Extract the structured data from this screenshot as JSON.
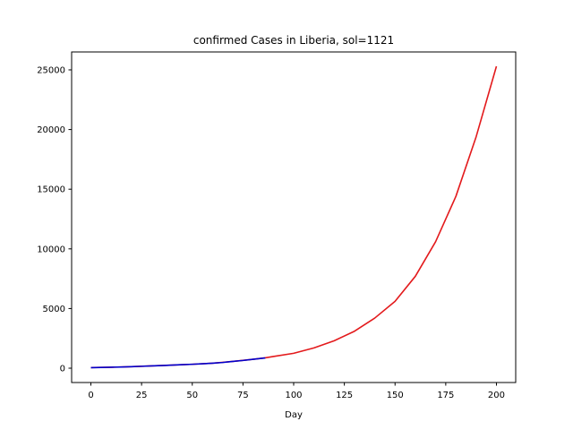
{
  "chart_data": {
    "type": "line",
    "title": "confirmed Cases in Liberia, sol=1121",
    "xlabel": "Day",
    "ylabel": "",
    "xlim": [
      -9.5,
      209.5
    ],
    "ylim": [
      -1200,
      26500
    ],
    "xticks": [
      0,
      25,
      50,
      75,
      100,
      125,
      150,
      175,
      200
    ],
    "yticks": [
      0,
      5000,
      10000,
      15000,
      20000,
      25000
    ],
    "grid": false,
    "legend": "none",
    "series": [
      {
        "color": "#e31a1c",
        "x": [
          0,
          10,
          20,
          30,
          40,
          50,
          60,
          70,
          80,
          86,
          90,
          100,
          110,
          120,
          130,
          140,
          150,
          160,
          170,
          180,
          190,
          200
        ],
        "y": [
          50,
          80,
          130,
          190,
          260,
          330,
          420,
          570,
          750,
          870,
          980,
          1250,
          1700,
          2300,
          3100,
          4200,
          5600,
          7700,
          10600,
          14400,
          19400,
          25300
        ]
      },
      {
        "color": "#0000cc",
        "x": [
          0,
          5,
          10,
          15,
          20,
          25,
          30,
          35,
          40,
          45,
          50,
          55,
          60,
          65,
          70,
          75,
          80,
          86
        ],
        "y": [
          40,
          60,
          80,
          100,
          130,
          160,
          190,
          225,
          260,
          300,
          330,
          370,
          420,
          480,
          570,
          650,
          750,
          860
        ]
      }
    ]
  }
}
